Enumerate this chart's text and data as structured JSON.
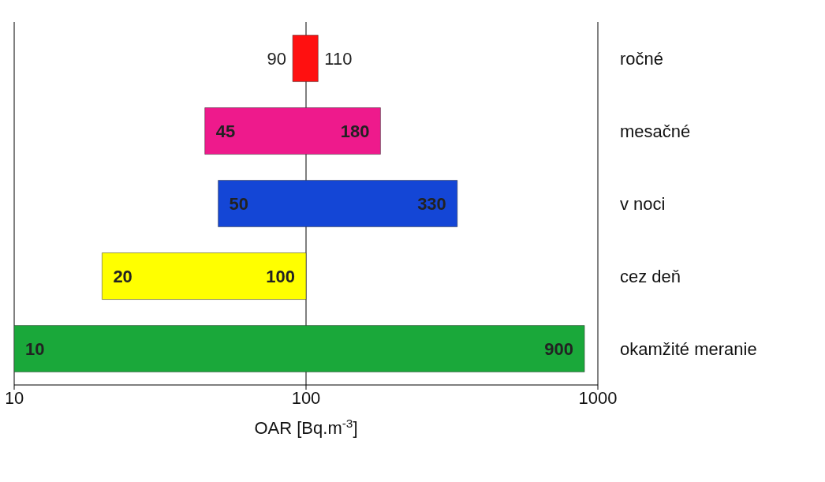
{
  "chart_data": {
    "type": "bar",
    "orientation": "horizontal",
    "categories": [
      "ročné",
      "mesačné",
      "v noci",
      "cez deň",
      "okamžité meranie"
    ],
    "base": [
      90,
      45,
      50,
      20,
      10
    ],
    "values": [
      20,
      135,
      280,
      80,
      890
    ],
    "colors": [
      "#ff1010",
      "#ee1a8c",
      "#1446d6",
      "#ffff00",
      "#1aa83a"
    ],
    "xlabel": "OAR [Bq.m$^{-3}$]",
    "log": "x",
    "xlim": [
      10,
      1000
    ],
    "xticks": [
      10,
      100,
      1000
    ],
    "grid": "x",
    "annotations": [
      {
        "text": "90",
        "x": 90,
        "y": "ročné"
      },
      {
        "text": "110",
        "x": 110,
        "y": "ročné"
      },
      {
        "text": "45",
        "x": 45,
        "y": "mesačné"
      },
      {
        "text": "180",
        "x": 180,
        "y": "mesačné"
      },
      {
        "text": "50",
        "x": 50,
        "y": "v noci"
      },
      {
        "text": "330",
        "x": 330,
        "y": "v noci"
      },
      {
        "text": "20",
        "x": 20,
        "y": "cez deň"
      },
      {
        "text": "100",
        "x": 100,
        "y": "cez deň"
      },
      {
        "text": "10",
        "x": 10,
        "y": "okamžité meranie"
      },
      {
        "text": "900",
        "x": 900,
        "y": "okamžité meranie"
      }
    ]
  }
}
